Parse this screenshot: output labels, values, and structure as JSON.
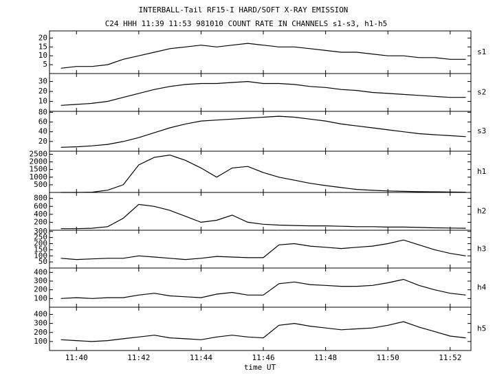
{
  "chart_data": {
    "type": "line",
    "title": "INTERBALL-Tail RF15-I HARD/SOFT X-RAY EMISSION",
    "subtitle": "C24 HHH 11:39 11:53 981010  COUNT RATE IN CHANNELS s1-s3, h1-h5",
    "xlabel": "time UT",
    "color": "#000000",
    "x": [
      "11:39:30",
      "11:40:00",
      "11:40:30",
      "11:41:00",
      "11:41:30",
      "11:42:00",
      "11:42:30",
      "11:43:00",
      "11:43:30",
      "11:44:00",
      "11:44:30",
      "11:45:00",
      "11:45:30",
      "11:46:00",
      "11:46:30",
      "11:47:00",
      "11:47:30",
      "11:48:00",
      "11:48:30",
      "11:49:00",
      "11:49:30",
      "11:50:00",
      "11:50:30",
      "11:51:00",
      "11:51:30",
      "11:52:00",
      "11:52:30"
    ],
    "xlim": [
      "11:39:08",
      "11:52:40"
    ],
    "xticks": [
      {
        "value": "11:40:00",
        "label": "11:40"
      },
      {
        "value": "11:42:00",
        "label": "11:42"
      },
      {
        "value": "11:44:00",
        "label": "11:44"
      },
      {
        "value": "11:46:00",
        "label": "11:46"
      },
      {
        "value": "11:48:00",
        "label": "11:48"
      },
      {
        "value": "11:50:00",
        "label": "11:50"
      },
      {
        "value": "11:52:00",
        "label": "11:52"
      }
    ],
    "series": [
      {
        "name": "s1",
        "ylim": [
          0,
          24
        ],
        "yticks": [
          5,
          10,
          15,
          20
        ],
        "values": [
          3,
          4,
          4,
          5,
          8,
          10,
          12,
          14,
          15,
          16,
          15,
          16,
          17,
          16,
          15,
          15,
          14,
          13,
          12,
          12,
          11,
          10,
          10,
          9,
          9,
          8,
          8
        ]
      },
      {
        "name": "s2",
        "ylim": [
          0,
          38
        ],
        "yticks": [
          10,
          20,
          30
        ],
        "values": [
          6,
          7,
          8,
          10,
          14,
          18,
          22,
          25,
          27,
          28,
          28,
          29,
          30,
          28,
          28,
          27,
          25,
          24,
          22,
          21,
          19,
          18,
          17,
          16,
          15,
          14,
          14
        ]
      },
      {
        "name": "s3",
        "ylim": [
          0,
          82
        ],
        "yticks": [
          20,
          40,
          60,
          80
        ],
        "values": [
          8,
          9,
          11,
          14,
          20,
          28,
          38,
          48,
          56,
          62,
          64,
          66,
          68,
          70,
          72,
          70,
          66,
          62,
          56,
          52,
          48,
          44,
          40,
          36,
          34,
          32,
          30
        ]
      },
      {
        "name": "h1",
        "ylim": [
          0,
          2700
        ],
        "yticks": [
          500,
          1000,
          1500,
          2000,
          2500
        ],
        "values": [
          0,
          0,
          20,
          150,
          500,
          1800,
          2300,
          2450,
          2100,
          1600,
          1000,
          1600,
          1700,
          1300,
          1000,
          800,
          600,
          450,
          320,
          200,
          140,
          100,
          70,
          50,
          40,
          30,
          20
        ]
      },
      {
        "name": "h2",
        "ylim": [
          0,
          950
        ],
        "yticks": [
          200,
          400,
          600,
          800
        ],
        "values": [
          40,
          40,
          50,
          90,
          300,
          650,
          600,
          500,
          350,
          200,
          250,
          380,
          200,
          150,
          130,
          120,
          110,
          110,
          100,
          90,
          90,
          80,
          80,
          70,
          60,
          55,
          50
        ]
      },
      {
        "name": "h3",
        "ylim": [
          0,
          310
        ],
        "yticks": [
          50,
          100,
          150,
          200,
          250,
          300
        ],
        "values": [
          80,
          70,
          75,
          80,
          80,
          100,
          90,
          80,
          70,
          80,
          95,
          90,
          85,
          85,
          190,
          200,
          180,
          170,
          160,
          170,
          180,
          200,
          230,
          190,
          150,
          120,
          100
        ]
      },
      {
        "name": "h4",
        "ylim": [
          0,
          450
        ],
        "yticks": [
          100,
          200,
          300,
          400
        ],
        "values": [
          100,
          110,
          100,
          110,
          110,
          140,
          160,
          130,
          120,
          110,
          150,
          170,
          140,
          140,
          270,
          290,
          260,
          250,
          240,
          240,
          250,
          280,
          320,
          250,
          200,
          160,
          140
        ]
      },
      {
        "name": "h5",
        "ylim": [
          0,
          480
        ],
        "yticks": [
          100,
          200,
          300,
          400
        ],
        "values": [
          120,
          110,
          100,
          110,
          130,
          150,
          170,
          140,
          130,
          120,
          150,
          170,
          150,
          140,
          280,
          300,
          270,
          250,
          230,
          240,
          250,
          280,
          320,
          260,
          210,
          160,
          140
        ]
      }
    ]
  }
}
